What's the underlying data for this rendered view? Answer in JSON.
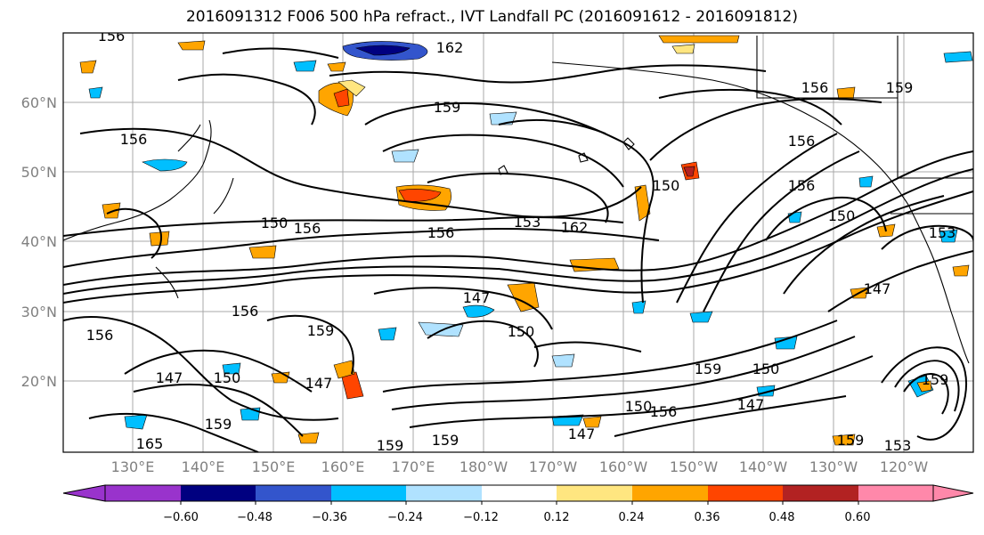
{
  "title": "2016091312 F006 500 hPa refract., IVT Landfall PC (2016091612 - 2016091812)",
  "latitude_labels": [
    "60°N",
    "50°N",
    "40°N",
    "30°N",
    "20°N"
  ],
  "longitude_labels": [
    "130°E",
    "140°E",
    "150°E",
    "160°E",
    "170°E",
    "180°W",
    "170°W",
    "160°W",
    "150°W",
    "140°W",
    "130°W",
    "120°W"
  ],
  "contour_labels": [
    "156",
    "162",
    "156",
    "159",
    "159",
    "156",
    "156",
    "150",
    "156",
    "150",
    "153",
    "162",
    "156",
    "153",
    "156",
    "150",
    "147",
    "150",
    "159",
    "156",
    "150",
    "147",
    "147",
    "165",
    "159",
    "159",
    "159",
    "147",
    "150",
    "156",
    "159",
    "150",
    "147",
    "153",
    "159",
    "147",
    "156",
    "159"
  ],
  "colorbar": {
    "tick_labels": [
      "−0.60",
      "−0.48",
      "−0.36",
      "−0.24",
      "−0.12",
      "0.12",
      "0.24",
      "0.36",
      "0.48",
      "0.60"
    ],
    "colors": [
      "#9933cc",
      "#000080",
      "#3355cc",
      "#00bfff",
      "#b0e2ff",
      "#ffffff",
      "#ffe680",
      "#ffa500",
      "#ff4500",
      "#b22222",
      "#ff88aa"
    ]
  }
}
